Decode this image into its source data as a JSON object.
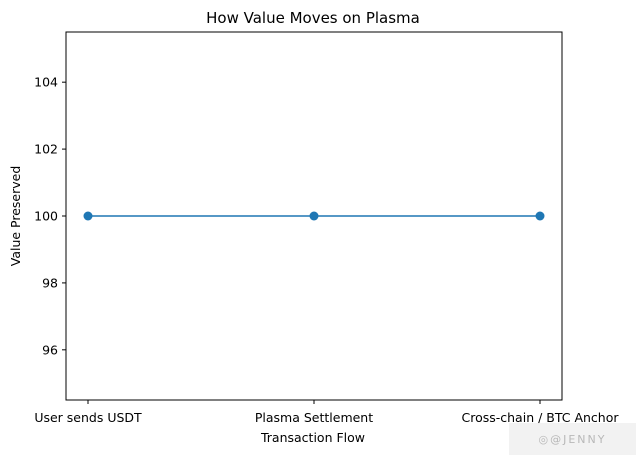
{
  "chart_data": {
    "type": "line",
    "title": "How Value Moves on Plasma",
    "xlabel": "Transaction Flow",
    "ylabel": "Value Preserved",
    "categories": [
      "User sends USDT",
      "Plasma Settlement",
      "Cross-chain / BTC Anchor"
    ],
    "series": [
      {
        "values": [
          100,
          100,
          100
        ],
        "color": "#1f77b4",
        "marker": "circle"
      }
    ],
    "ylim": [
      94.5,
      105.5
    ],
    "yticks": [
      96,
      98,
      100,
      102,
      104
    ],
    "grid": false,
    "legend": "none"
  },
  "watermark": {
    "text": "◎@JENNY",
    "color": "#b8b8b8"
  }
}
